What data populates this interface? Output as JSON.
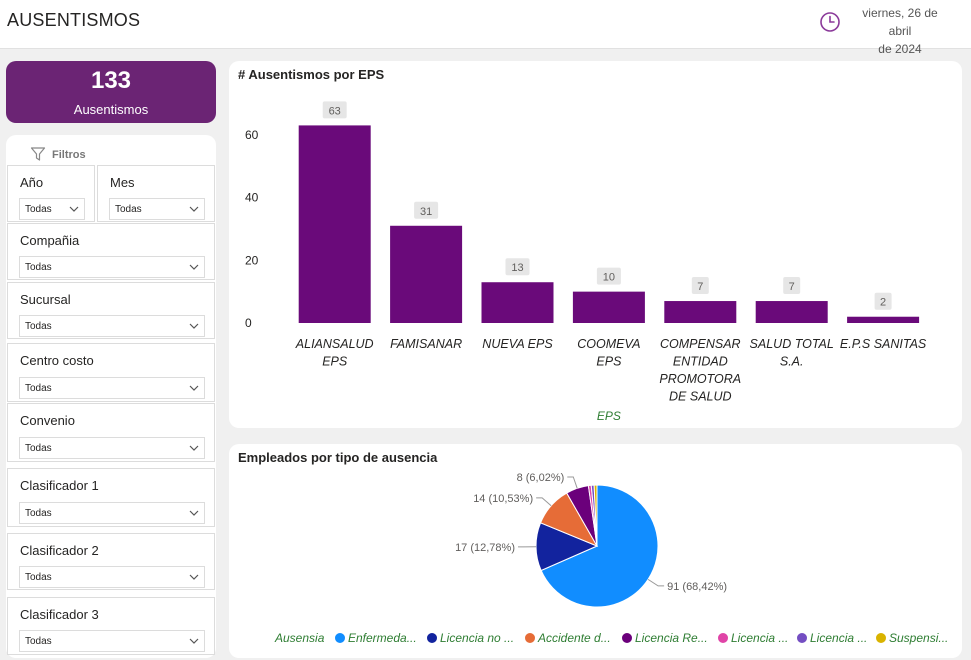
{
  "header": {
    "title": "AUSENTISMOS",
    "date_line1": "viernes, 26 de abril",
    "date_line2": "de 2024"
  },
  "kpi": {
    "value": "133",
    "label": "Ausentismos"
  },
  "filters": {
    "title": "Filtros",
    "year": {
      "label": "Año",
      "value": "Todas"
    },
    "month": {
      "label": "Mes",
      "value": "Todas"
    },
    "company": {
      "label": "Compañia",
      "value": "Todas"
    },
    "branch": {
      "label": "Sucursal",
      "value": "Todas"
    },
    "cost_center": {
      "label": "Centro costo",
      "value": "Todas"
    },
    "agreement": {
      "label": "Convenio",
      "value": "Todas"
    },
    "classifier1": {
      "label": "Clasificador 1",
      "value": "Todas"
    },
    "classifier2": {
      "label": "Clasificador 2",
      "value": "Todas"
    },
    "classifier3": {
      "label": "Clasificador 3",
      "value": "Todas"
    }
  },
  "colors": {
    "bar": "#6a0a7a",
    "kpi_bg": "#6b2474",
    "axis_title": "#2e7d32",
    "clock": "#8b3a9a"
  },
  "chart_data": [
    {
      "type": "bar",
      "title": "# Ausentismos por EPS",
      "xlabel": "EPS",
      "ylabel": "",
      "categories": [
        [
          "ALIANSALUD",
          "EPS"
        ],
        [
          "FAMISANAR"
        ],
        [
          "NUEVA EPS"
        ],
        [
          "COOMEVA",
          "EPS"
        ],
        [
          "COMPENSAR",
          "ENTIDAD",
          "PROMOTORA",
          "DE SALUD"
        ],
        [
          "SALUD TOTAL",
          "S.A."
        ],
        [
          "E.P.S SANITAS"
        ]
      ],
      "values": [
        63,
        31,
        13,
        10,
        7,
        7,
        2
      ],
      "yticks": [
        0,
        20,
        40,
        60
      ],
      "ylim": [
        0,
        66
      ]
    },
    {
      "type": "pie",
      "title": "Empleados por tipo de ausencia",
      "legend_title": "Ausensia",
      "slices": [
        {
          "name": "Enfermeda...",
          "value": 91,
          "label": "91 (68,42%)",
          "color": "#118dff"
        },
        {
          "name": "Licencia no ...",
          "value": 17,
          "label": "17 (12,78%)",
          "color": "#12239e"
        },
        {
          "name": "Accidente d...",
          "value": 14,
          "label": "14 (10,53%)",
          "color": "#e66c37"
        },
        {
          "name": "Licencia Re...",
          "value": 8,
          "label": "8 (6,02%)",
          "color": "#6b007b"
        },
        {
          "name": "Licencia ...",
          "value": 1,
          "label": "",
          "color": "#e044a7"
        },
        {
          "name": "Licencia ...",
          "value": 1,
          "label": "",
          "color": "#744ec2"
        },
        {
          "name": "Suspensi...",
          "value": 1,
          "label": "",
          "color": "#d9b300"
        }
      ]
    }
  ]
}
